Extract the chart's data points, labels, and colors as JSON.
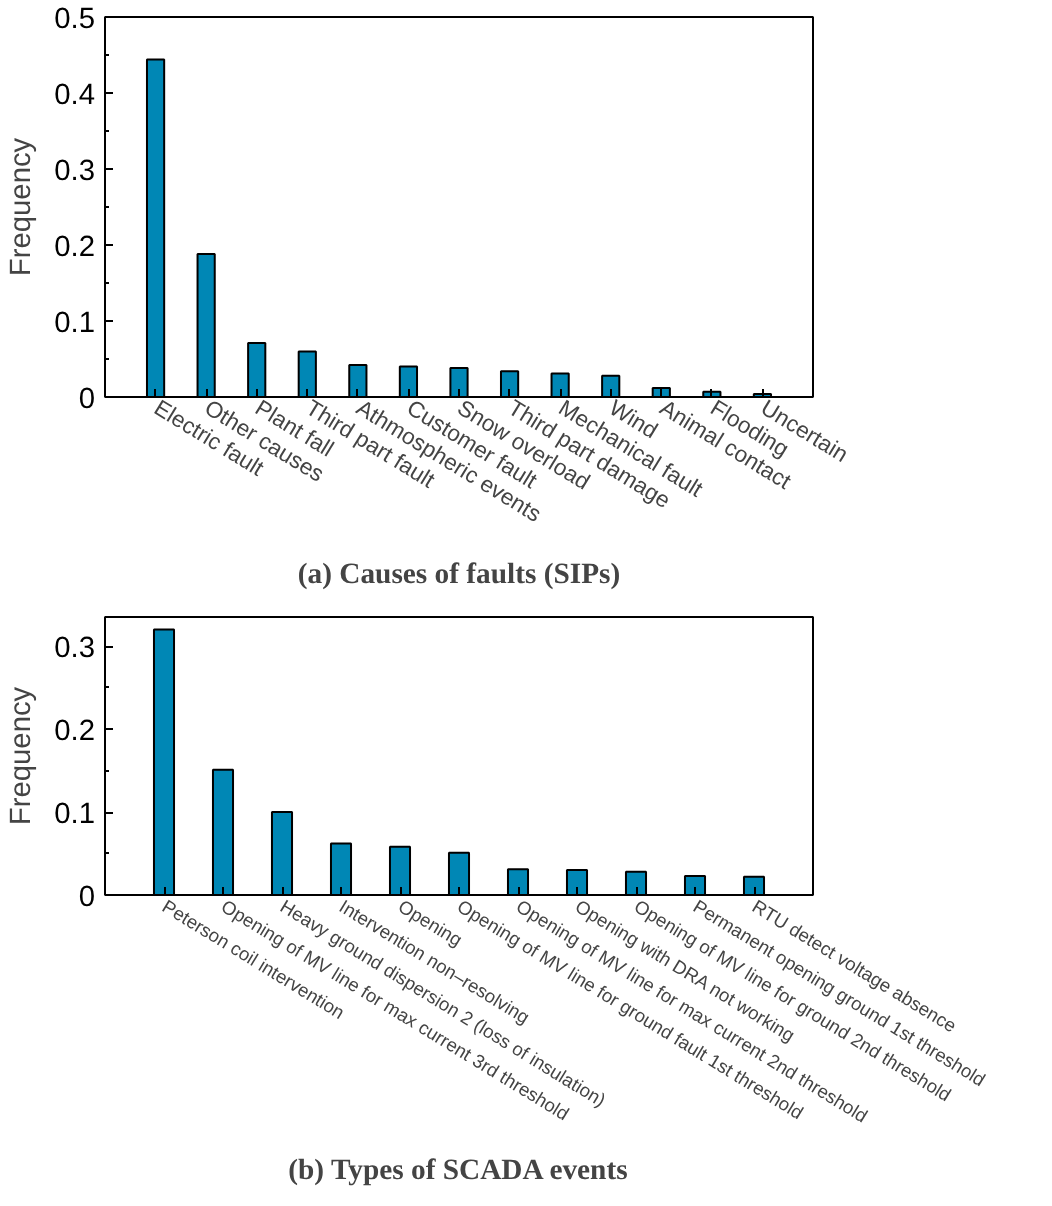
{
  "chart_data": [
    {
      "type": "bar",
      "title": "(a) Causes of faults (SIPs)",
      "ylabel": "Frequency",
      "categories": [
        "Electric fault",
        "Other causes",
        "Plant fall",
        "Third part fault",
        "Athmospheric events",
        "Customer fault",
        "Snow overload",
        "Third part damage",
        "Mechanical fault",
        "Wind",
        "Animal contact",
        "Flooding",
        "Uncertain"
      ],
      "values": [
        0.444,
        0.188,
        0.071,
        0.06,
        0.042,
        0.04,
        0.038,
        0.034,
        0.031,
        0.028,
        0.012,
        0.007,
        0.004
      ],
      "color": "#0087b5",
      "ylim": [
        0,
        0.5
      ],
      "yticks": [
        0,
        0.1,
        0.2,
        0.3,
        0.4,
        0.5
      ],
      "grid": false
    },
    {
      "type": "bar",
      "title": "(b) Types of SCADA events",
      "ylabel": "Frequency",
      "categories": [
        "Peterson coil intervention",
        "Opening of MV line for max current 3rd threshold",
        "Heavy ground dispersion 2 (loss of insulation)",
        "Intervention non–resolving",
        "Opening",
        "Opening of MV line for ground fault 1st threshold",
        "Opening of MV line for max current 2nd threshold",
        "Opening with DRA not working",
        "Opening of MV line for ground 2nd threshold",
        "Permanent opening ground 1st threshold",
        "RTU detect voltage absence"
      ],
      "values": [
        0.32,
        0.151,
        0.1,
        0.062,
        0.058,
        0.051,
        0.031,
        0.03,
        0.028,
        0.023,
        0.022
      ],
      "color": "#0087b5",
      "ylim": [
        0,
        0.335
      ],
      "yticks": [
        0,
        0.1,
        0.2,
        0.3
      ],
      "grid": false
    }
  ]
}
